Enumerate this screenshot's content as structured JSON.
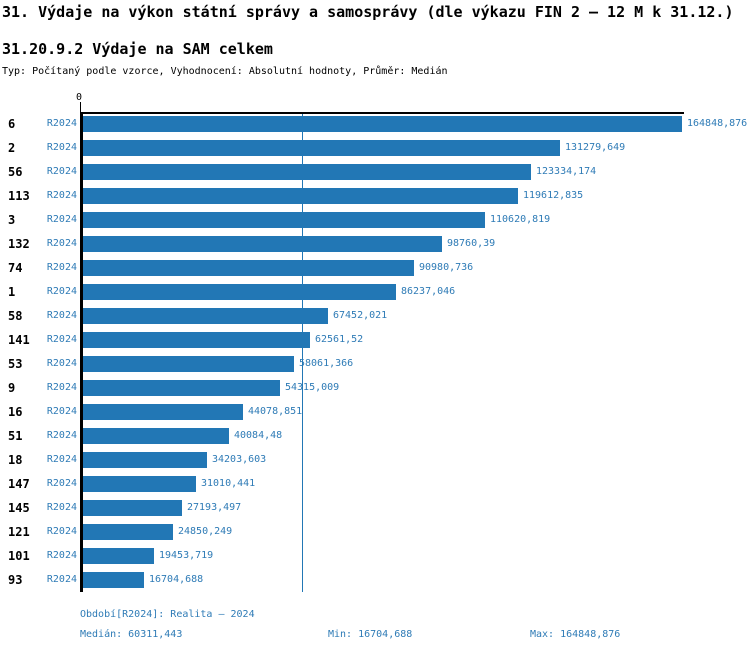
{
  "title": "31. Výdaje na výkon státní správy a samosprávy (dle výkazu FIN 2 – 12 M k 31.12.)",
  "subtitle": "31.20.9.2 Výdaje na SAM celkem",
  "meta_line": "Typ: Počítaný podle vzorce, Vyhodnocení: Absolutní hodnoty, Průměr: Medián",
  "colors": {
    "bar": "#2277b5",
    "text_blue": "#2e7bb6",
    "axis": "#000000"
  },
  "chart_data": {
    "type": "bar",
    "orientation": "horizontal",
    "axis_origin_label": "0",
    "period_label": "R2024",
    "categories": [
      "6",
      "2",
      "56",
      "113",
      "3",
      "132",
      "74",
      "1",
      "58",
      "141",
      "53",
      "9",
      "16",
      "51",
      "18",
      "147",
      "145",
      "121",
      "101",
      "93"
    ],
    "values": [
      164848.876,
      131279.649,
      123334.174,
      119612.835,
      110620.819,
      98760.39,
      90980.736,
      86237.046,
      67452.021,
      62561.52,
      58061.366,
      54315.009,
      44078.851,
      40084.48,
      34203.603,
      31010.441,
      27193.497,
      24850.249,
      19453.719,
      16704.688
    ],
    "value_labels": [
      "164848,876",
      "131279,649",
      "123334,174",
      "119612,835",
      "110620,819",
      "98760,39",
      "90980,736",
      "86237,046",
      "67452,021",
      "62561,52",
      "58061,366",
      "54315,009",
      "44078,851",
      "40084,48",
      "34203,603",
      "31010,441",
      "27193,497",
      "24850,249",
      "19453,719",
      "16704,688"
    ],
    "median": 60311.443,
    "xlim": [
      0,
      164848.876
    ],
    "grid": false,
    "legend": false
  },
  "footer": {
    "period": "Období[R2024]: Realita – 2024",
    "median": "Medián: 60311,443",
    "min": "Min: 16704,688",
    "max": "Max: 164848,876"
  }
}
